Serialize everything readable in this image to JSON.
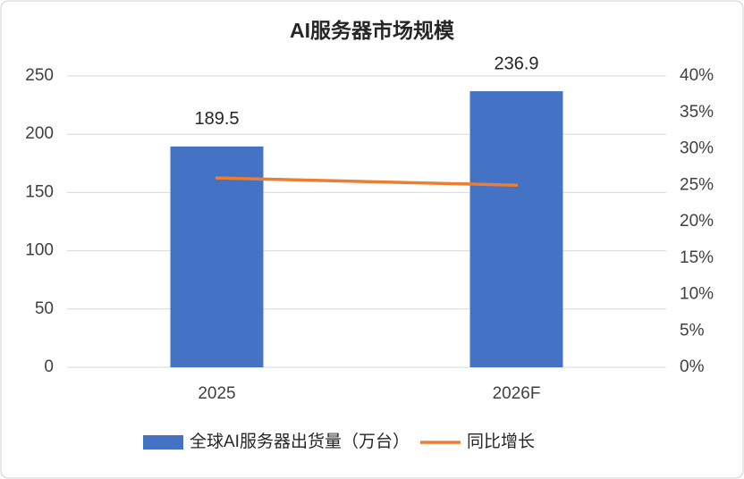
{
  "chart_data": {
    "type": "bar_line",
    "title": "AI服务器市场规模",
    "categories": [
      "2025",
      "2026F"
    ],
    "series": [
      {
        "name": "全球AI服务器出货量（万台）",
        "type": "bar",
        "color": "#4472c4",
        "values": [
          189.5,
          236.9
        ]
      },
      {
        "name": "同比增长",
        "type": "line",
        "color": "#ed7d31",
        "axis": "y2",
        "values": [
          26,
          25
        ]
      }
    ],
    "ylim": [
      0,
      250
    ],
    "yticks": [
      0,
      50,
      100,
      150,
      200,
      250
    ],
    "y2lim": [
      0,
      40
    ],
    "y2ticks": [
      {
        "value": 0,
        "label": "0%"
      },
      {
        "value": 5,
        "label": "5%"
      },
      {
        "value": 10,
        "label": "10%"
      },
      {
        "value": 15,
        "label": "15%"
      },
      {
        "value": 20,
        "label": "20%"
      },
      {
        "value": 25,
        "label": "25%"
      },
      {
        "value": 30,
        "label": "30%"
      },
      {
        "value": 35,
        "label": "35%"
      },
      {
        "value": 40,
        "label": "40%"
      }
    ],
    "grid": true,
    "legend": "bottom"
  }
}
